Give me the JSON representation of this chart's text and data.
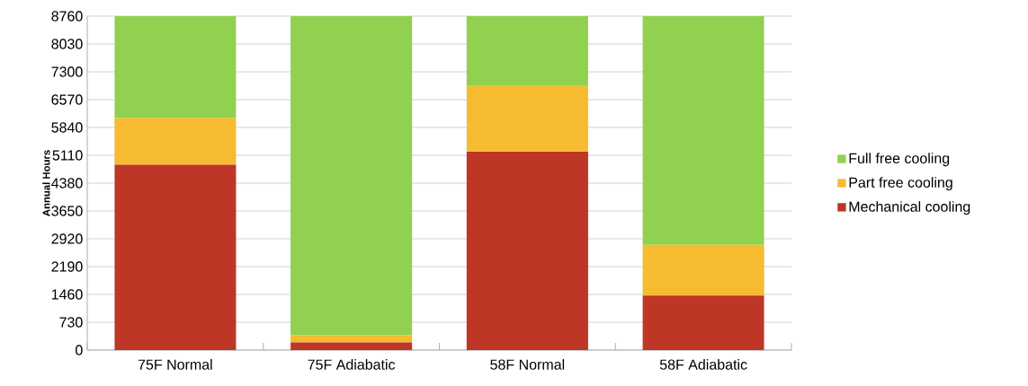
{
  "chart_data": {
    "type": "bar",
    "stacked": true,
    "ylabel": "Annual Hours",
    "categories": [
      "75F Normal",
      "75F Adiabatic",
      "58F Normal",
      "58F Adiabatic"
    ],
    "series": [
      {
        "name": "Mechanical cooling",
        "color": "#be3626",
        "values": [
          4860,
          200,
          5210,
          1430
        ]
      },
      {
        "name": "Part free cooling",
        "color": "#f6bb31",
        "values": [
          1230,
          190,
          1720,
          1330
        ]
      },
      {
        "name": "Full free cooling",
        "color": "#92d050",
        "values": [
          2670,
          8370,
          1830,
          6000
        ]
      }
    ],
    "ylim": [
      0,
      8760
    ],
    "yticks": [
      0,
      730,
      1460,
      2190,
      2920,
      3650,
      4380,
      5110,
      5840,
      6570,
      7300,
      8030,
      8760
    ],
    "grid": "y",
    "legend": "right"
  }
}
